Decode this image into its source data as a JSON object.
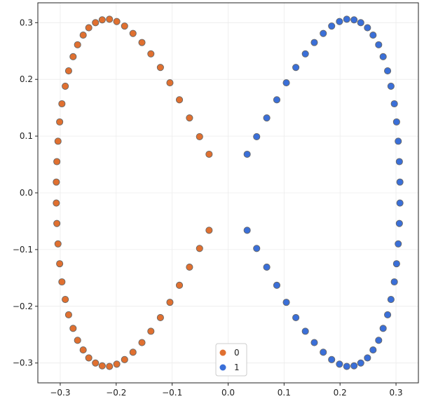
{
  "chart_data": {
    "type": "scatter",
    "title": "",
    "xlabel": "",
    "ylabel": "",
    "xlim": [
      -0.34,
      0.34
    ],
    "ylim": [
      -0.335,
      0.335
    ],
    "grid": true,
    "legend_position": "bottom-center",
    "xticks": [
      -0.3,
      -0.2,
      -0.1,
      0.0,
      0.1,
      0.2,
      0.3
    ],
    "xtick_labels": [
      "−0.3",
      "−0.2",
      "−0.1",
      "0.0",
      "0.1",
      "0.2",
      "0.3"
    ],
    "yticks": [
      -0.3,
      -0.2,
      -0.1,
      0.0,
      0.1,
      0.2,
      0.3
    ],
    "ytick_labels": [
      "−0.3",
      "−0.2",
      "−0.1",
      "0.0",
      "0.1",
      "0.2",
      "0.3"
    ],
    "series": [
      {
        "name": "0",
        "color": "#e07030",
        "edge_color": "#666666",
        "points": [
          [
            -0.034,
            0.068
          ],
          [
            -0.051,
            0.099
          ],
          [
            -0.069,
            0.132
          ],
          [
            -0.087,
            0.164
          ],
          [
            -0.104,
            0.194
          ],
          [
            -0.121,
            0.221
          ],
          [
            -0.138,
            0.245
          ],
          [
            -0.154,
            0.265
          ],
          [
            -0.17,
            0.281
          ],
          [
            -0.185,
            0.294
          ],
          [
            -0.199,
            0.302
          ],
          [
            -0.212,
            0.306
          ],
          [
            -0.225,
            0.305
          ],
          [
            -0.237,
            0.3
          ],
          [
            -0.249,
            0.291
          ],
          [
            -0.259,
            0.278
          ],
          [
            -0.269,
            0.261
          ],
          [
            -0.277,
            0.24
          ],
          [
            -0.285,
            0.215
          ],
          [
            -0.291,
            0.188
          ],
          [
            -0.297,
            0.157
          ],
          [
            -0.301,
            0.125
          ],
          [
            -0.304,
            0.091
          ],
          [
            -0.306,
            0.055
          ],
          [
            -0.307,
            0.019
          ],
          [
            -0.307,
            -0.018
          ],
          [
            -0.306,
            -0.054
          ],
          [
            -0.304,
            -0.09
          ],
          [
            -0.301,
            -0.125
          ],
          [
            -0.297,
            -0.157
          ],
          [
            -0.291,
            -0.188
          ],
          [
            -0.285,
            -0.215
          ],
          [
            -0.277,
            -0.239
          ],
          [
            -0.269,
            -0.26
          ],
          [
            -0.259,
            -0.277
          ],
          [
            -0.249,
            -0.291
          ],
          [
            -0.237,
            -0.3
          ],
          [
            -0.225,
            -0.305
          ],
          [
            -0.212,
            -0.306
          ],
          [
            -0.199,
            -0.302
          ],
          [
            -0.185,
            -0.294
          ],
          [
            -0.17,
            -0.281
          ],
          [
            -0.154,
            -0.264
          ],
          [
            -0.138,
            -0.244
          ],
          [
            -0.121,
            -0.22
          ],
          [
            -0.104,
            -0.193
          ],
          [
            -0.087,
            -0.163
          ],
          [
            -0.069,
            -0.131
          ],
          [
            -0.051,
            -0.098
          ],
          [
            -0.034,
            -0.066
          ]
        ]
      },
      {
        "name": "1",
        "color": "#3a6fd8",
        "edge_color": "#666666",
        "points": [
          [
            0.034,
            0.068
          ],
          [
            0.051,
            0.099
          ],
          [
            0.069,
            0.132
          ],
          [
            0.087,
            0.164
          ],
          [
            0.104,
            0.194
          ],
          [
            0.121,
            0.221
          ],
          [
            0.138,
            0.245
          ],
          [
            0.154,
            0.265
          ],
          [
            0.17,
            0.281
          ],
          [
            0.185,
            0.294
          ],
          [
            0.199,
            0.302
          ],
          [
            0.212,
            0.306
          ],
          [
            0.225,
            0.305
          ],
          [
            0.237,
            0.3
          ],
          [
            0.249,
            0.291
          ],
          [
            0.259,
            0.278
          ],
          [
            0.269,
            0.261
          ],
          [
            0.277,
            0.24
          ],
          [
            0.285,
            0.215
          ],
          [
            0.291,
            0.188
          ],
          [
            0.297,
            0.157
          ],
          [
            0.301,
            0.125
          ],
          [
            0.304,
            0.091
          ],
          [
            0.306,
            0.055
          ],
          [
            0.307,
            0.019
          ],
          [
            0.307,
            -0.018
          ],
          [
            0.306,
            -0.054
          ],
          [
            0.304,
            -0.09
          ],
          [
            0.301,
            -0.125
          ],
          [
            0.297,
            -0.157
          ],
          [
            0.291,
            -0.188
          ],
          [
            0.285,
            -0.215
          ],
          [
            0.277,
            -0.239
          ],
          [
            0.269,
            -0.26
          ],
          [
            0.259,
            -0.277
          ],
          [
            0.249,
            -0.291
          ],
          [
            0.237,
            -0.3
          ],
          [
            0.225,
            -0.305
          ],
          [
            0.212,
            -0.306
          ],
          [
            0.199,
            -0.302
          ],
          [
            0.185,
            -0.294
          ],
          [
            0.17,
            -0.281
          ],
          [
            0.154,
            -0.264
          ],
          [
            0.138,
            -0.244
          ],
          [
            0.121,
            -0.22
          ],
          [
            0.104,
            -0.193
          ],
          [
            0.087,
            -0.163
          ],
          [
            0.069,
            -0.131
          ],
          [
            0.051,
            -0.098
          ],
          [
            0.034,
            -0.066
          ]
        ]
      }
    ]
  }
}
